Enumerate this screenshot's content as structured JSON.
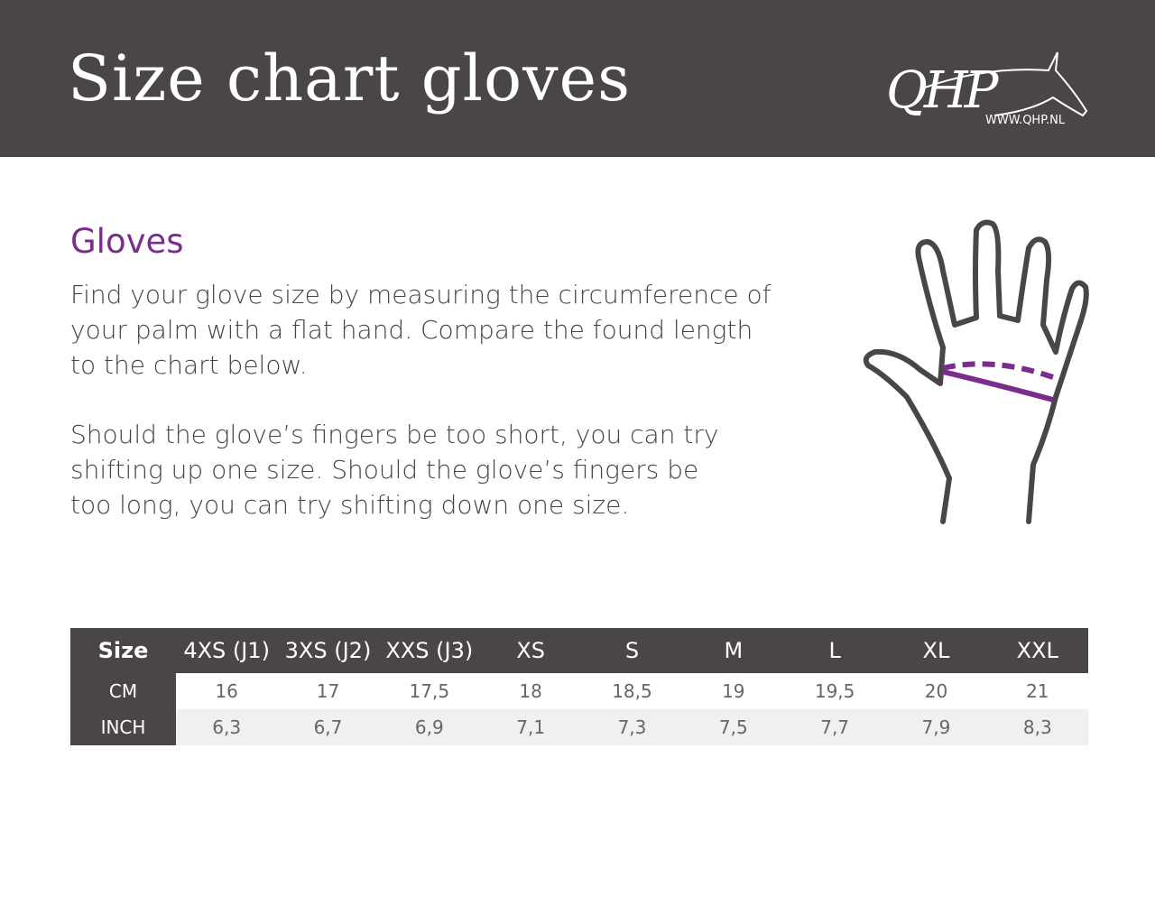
{
  "header": {
    "title": "Size chart gloves",
    "logo": {
      "text": "QHP",
      "url": "WWW.QHP.NL"
    }
  },
  "section": {
    "heading": "Gloves",
    "paragraph1": "Find your glove size by measuring the circumference of your palm with a flat hand. Compare the found length to the chart below.",
    "paragraph2": "Should the glove’s fingers be too short, you can try shifting up one size. Should the glove’s fingers be too long, you can try shifting down one size."
  },
  "colors": {
    "header_bg": "#4a4647",
    "accent": "#7b2d8b"
  },
  "illustration": "hand-palm-measurement-icon",
  "table": {
    "headers": [
      "Size",
      "4XS (J1)",
      "3XS (J2)",
      "XXS (J3)",
      "XS",
      "S",
      "M",
      "L",
      "XL",
      "XXL"
    ],
    "rows": [
      {
        "label": "CM",
        "values": [
          "16",
          "17",
          "17,5",
          "18",
          "18,5",
          "19",
          "19,5",
          "20",
          "21"
        ]
      },
      {
        "label": "INCH",
        "values": [
          "6,3",
          "6,7",
          "6,9",
          "7,1",
          "7,3",
          "7,5",
          "7,7",
          "7,9",
          "8,3"
        ]
      }
    ]
  }
}
